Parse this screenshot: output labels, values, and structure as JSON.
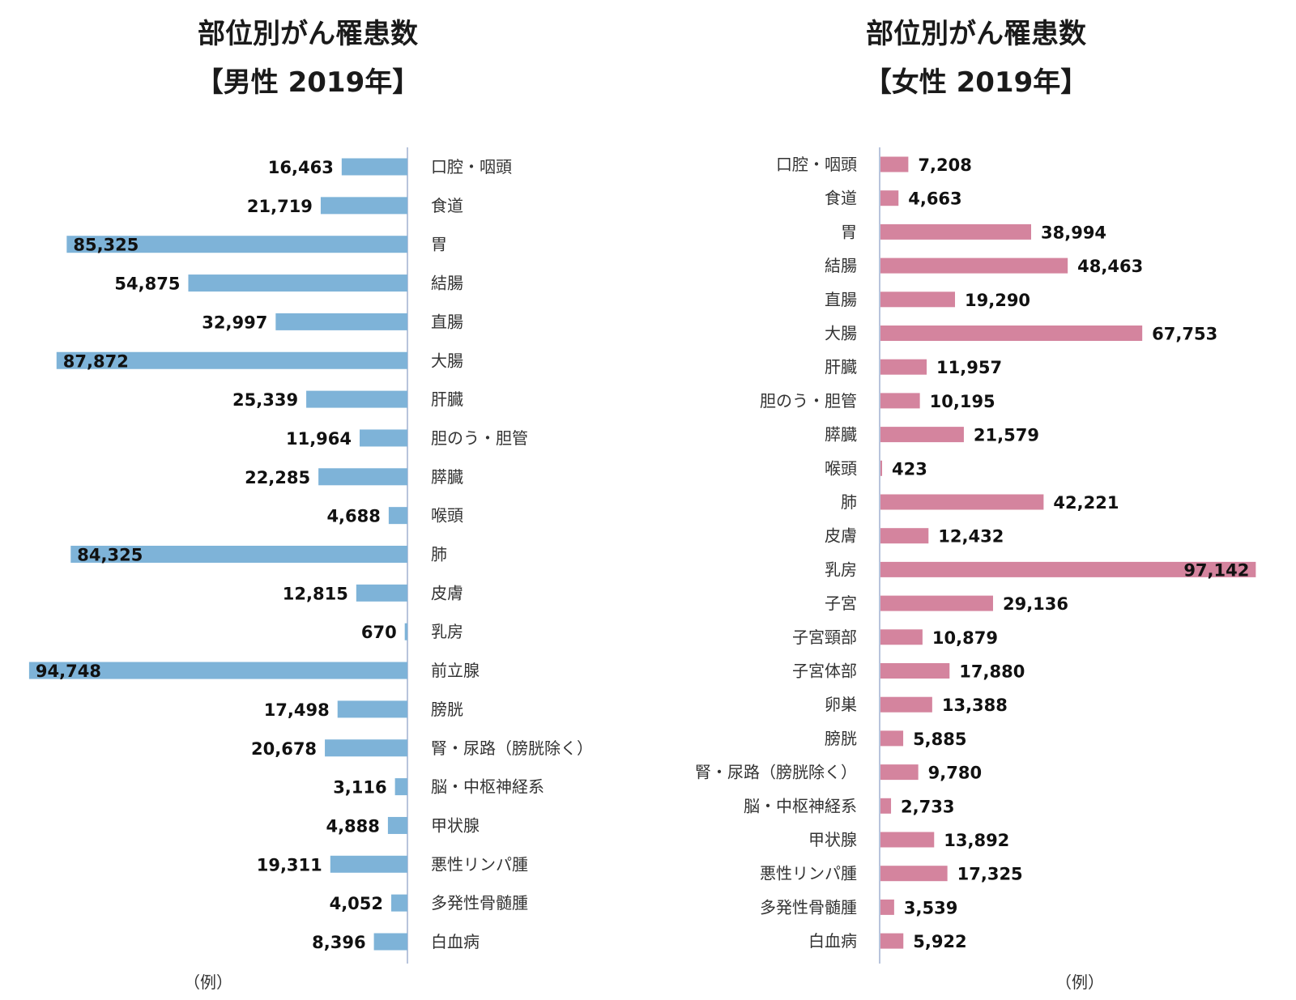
{
  "chart_data": [
    {
      "type": "bar",
      "orientation": "horizontal",
      "title": "部位別がん罹患数",
      "subtitle": "【男性 2019年】",
      "color": "#7eb3d8",
      "note": "（例）",
      "categories": [
        "口腔・咽頭",
        "食道",
        "胃",
        "結腸",
        "直腸",
        "大腸",
        "肝臓",
        "胆のう・胆管",
        "膵臓",
        "喉頭",
        "肺",
        "皮膚",
        "乳房",
        "前立腺",
        "膀胱",
        "腎・尿路（膀胱除く）",
        "脳・中枢神経系",
        "甲状腺",
        "悪性リンパ腫",
        "多発性骨髄腫",
        "白血病"
      ],
      "values": [
        16463,
        21719,
        85325,
        54875,
        32997,
        87872,
        25339,
        11964,
        22285,
        4688,
        84325,
        12815,
        670,
        94748,
        17498,
        20678,
        3116,
        4888,
        19311,
        4052,
        8396
      ],
      "labels": [
        "16,463",
        "21,719",
        "85,325",
        "54,875",
        "32,997",
        "87,872",
        "25,339",
        "11,964",
        "22,285",
        "4,688",
        "84,325",
        "12,815",
        "670",
        "94,748",
        "17,498",
        "20,678",
        "3,116",
        "4,888",
        "19,311",
        "4,052",
        "8,396"
      ]
    },
    {
      "type": "bar",
      "orientation": "horizontal",
      "title": "部位別がん罹患数",
      "subtitle": "【女性 2019年】",
      "color": "#d4849e",
      "note": "（例）",
      "categories": [
        "口腔・咽頭",
        "食道",
        "胃",
        "結腸",
        "直腸",
        "大腸",
        "肝臓",
        "胆のう・胆管",
        "膵臓",
        "喉頭",
        "肺",
        "皮膚",
        "乳房",
        "子宮",
        "子宮頸部",
        "子宮体部",
        "卵巣",
        "膀胱",
        "腎・尿路（膀胱除く）",
        "脳・中枢神経系",
        "甲状腺",
        "悪性リンパ腫",
        "多発性骨髄腫",
        "白血病"
      ],
      "values": [
        7208,
        4663,
        38994,
        48463,
        19290,
        67753,
        11957,
        10195,
        21579,
        423,
        42221,
        12432,
        97142,
        29136,
        10879,
        17880,
        13388,
        5885,
        9780,
        2733,
        13892,
        17325,
        3539,
        5922
      ],
      "labels": [
        "7,208",
        "4,663",
        "38,994",
        "48,463",
        "19,290",
        "67,753",
        "11,957",
        "10,195",
        "21,579",
        "423",
        "42,221",
        "12,432",
        "97,142",
        "29,136",
        "10,879",
        "17,880",
        "13,388",
        "5,885",
        "9,780",
        "2,733",
        "13,892",
        "17,325",
        "3,539",
        "5,922"
      ]
    }
  ]
}
